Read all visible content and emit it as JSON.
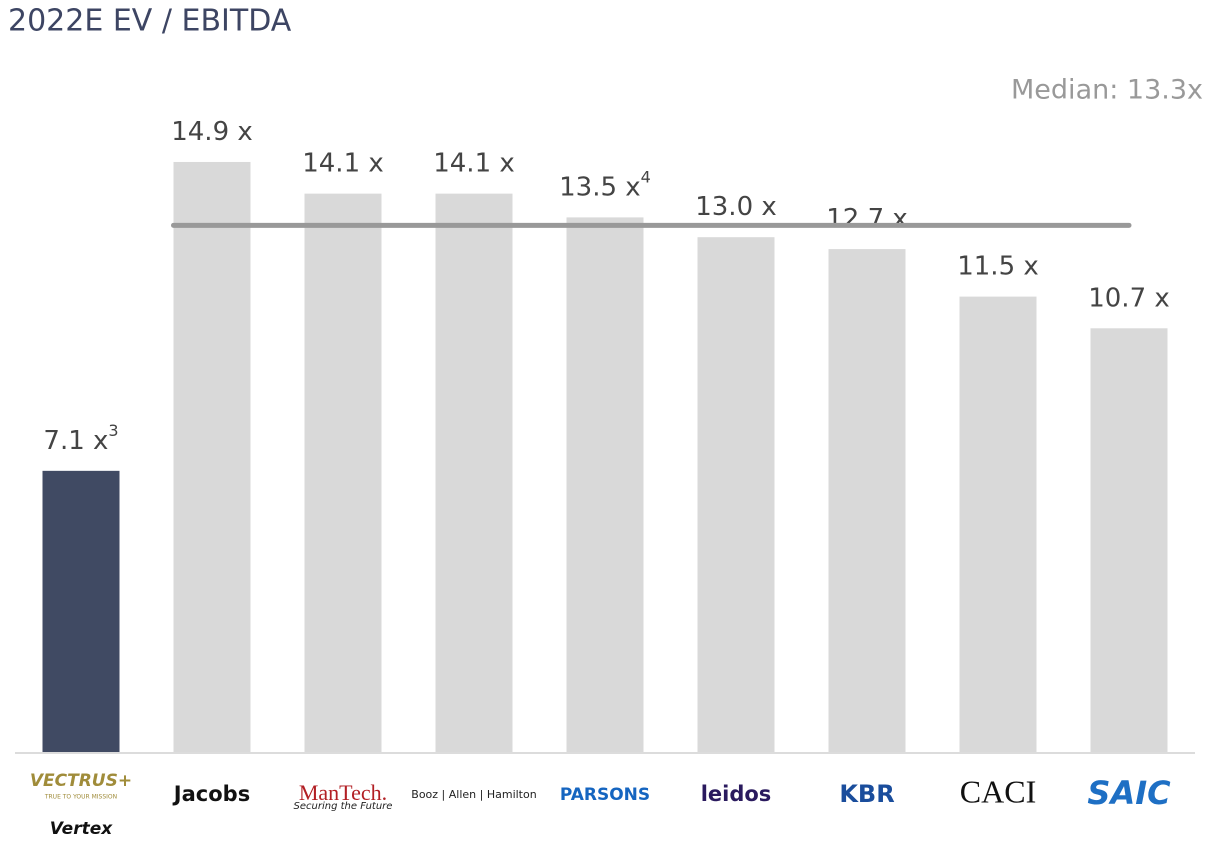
{
  "chart_data": {
    "type": "bar",
    "title": "2022E EV / EBITDA",
    "categories": [
      "VECTRUS+",
      "Jacobs",
      "ManTech.",
      "Booz | Allen | Hamilton",
      "PARSONS",
      "leidos",
      "KBR",
      "CACI",
      "SAIC"
    ],
    "logo_taglines": [
      [
        "TRUE TO YOUR MISSION",
        "Vertex"
      ],
      null,
      [
        "Securing the Future"
      ],
      null,
      null,
      null,
      null,
      null,
      null
    ],
    "values": [
      7.1,
      14.9,
      14.1,
      14.1,
      13.5,
      13.0,
      12.7,
      11.5,
      10.7
    ],
    "value_labels": [
      "7.1 x",
      "14.9 x",
      "14.1 x",
      "14.1 x",
      "13.5 x",
      "13.0 x",
      "12.7 x",
      "11.5 x",
      "10.7 x"
    ],
    "footnotes": [
      "3",
      null,
      null,
      null,
      "4",
      null,
      null,
      null,
      null
    ],
    "colors": [
      "#404a63",
      "#d9d9d9",
      "#d9d9d9",
      "#d9d9d9",
      "#d9d9d9",
      "#d9d9d9",
      "#d9d9d9",
      "#d9d9d9",
      "#d9d9d9"
    ],
    "median": 13.3,
    "median_label": "Median: 13.3x",
    "median_color": "#999999",
    "ylim": [
      0,
      15
    ]
  }
}
